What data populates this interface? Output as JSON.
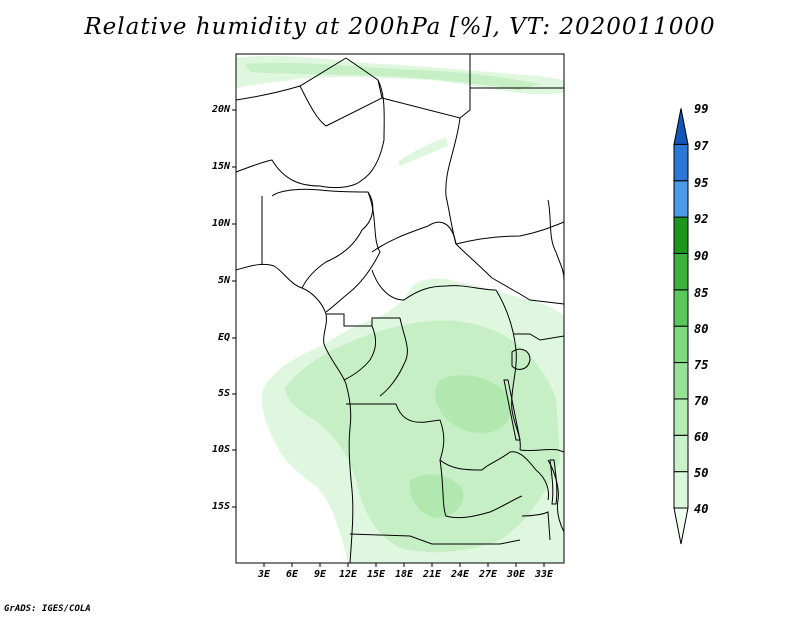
{
  "title": "Relative humidity at 200hPa [%], VT: 2020011000",
  "credit": "GrADS: IGES/COLA",
  "lat_labels": [
    "20N",
    "15N",
    "10N",
    "5N",
    "EQ",
    "5S",
    "10S",
    "15S"
  ],
  "lon_labels": [
    "3E",
    "6E",
    "9E",
    "12E",
    "15E",
    "18E",
    "21E",
    "24E",
    "27E",
    "30E",
    "33E"
  ],
  "colorbar": {
    "labels": [
      "40",
      "50",
      "60",
      "70",
      "75",
      "80",
      "85",
      "90",
      "92",
      "95",
      "97",
      "99"
    ],
    "colors": [
      "#f0fcf0",
      "#dcf8dc",
      "#c8f2c8",
      "#b4ecb4",
      "#96e296",
      "#7cda7c",
      "#5cc85c",
      "#3cb43c",
      "#1e961e",
      "#4a9be8",
      "#2a78d8",
      "#1455b8"
    ]
  },
  "map": {
    "ocean_color": "#ffffff",
    "border_color": "#000000",
    "shading_colors": [
      "#dff7df",
      "#c6efc6",
      "#b0e8b0"
    ]
  }
}
